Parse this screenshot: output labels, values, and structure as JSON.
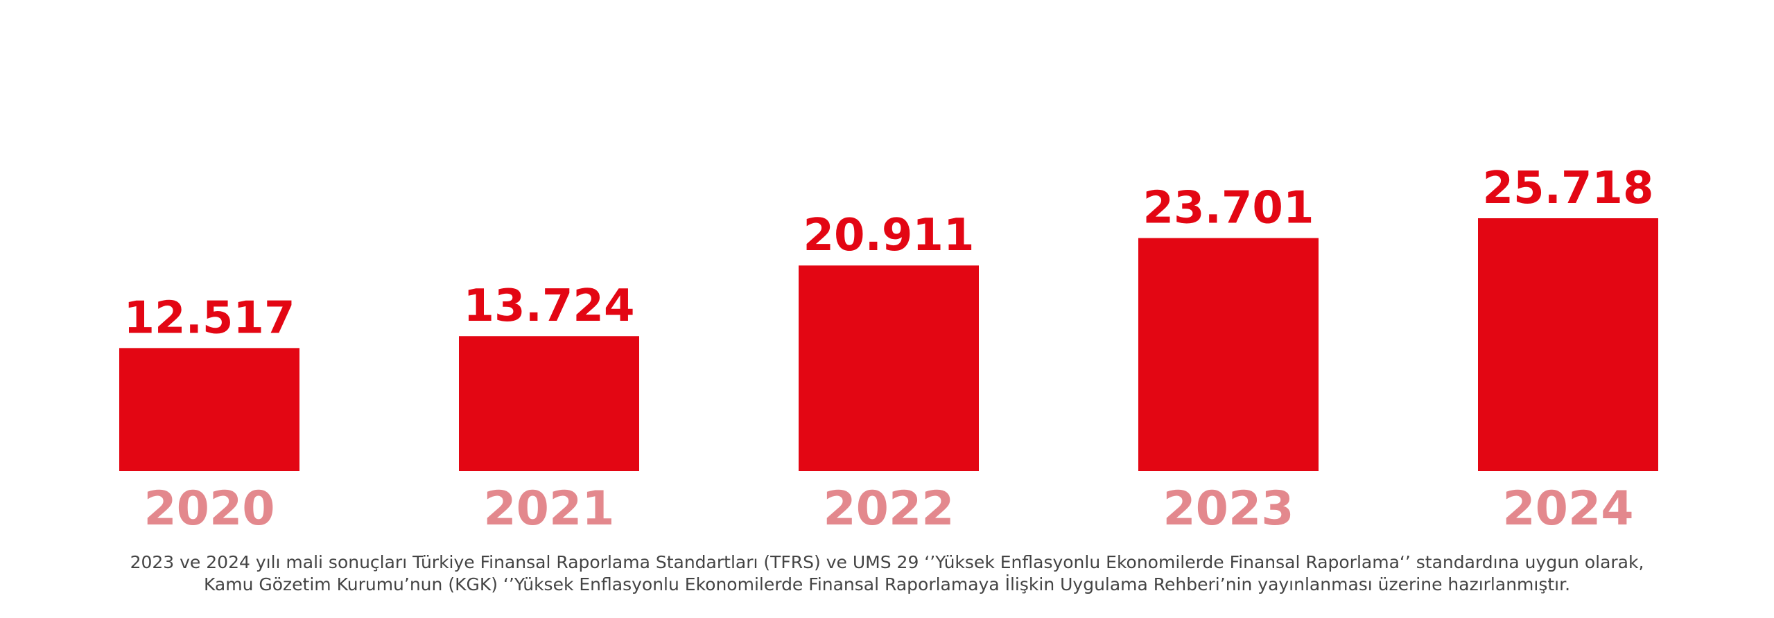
{
  "chart_data": {
    "type": "bar",
    "categories": [
      "2020",
      "2021",
      "2022",
      "2023",
      "2024"
    ],
    "values": [
      12517,
      13724,
      20911,
      23701,
      25718
    ],
    "value_labels": [
      "12.517",
      "13.724",
      "20.911",
      "23.701",
      "25.718"
    ],
    "title": "",
    "xlabel": "",
    "ylabel": "",
    "grid": false,
    "legend": "none"
  },
  "footnote": {
    "line1": "2023 ve 2024 yılı mali sonuçları Türkiye Finansal Raporlama Standartları (TFRS) ve UMS 29 ‘’Yüksek Enflasyonlu Ekonomilerde Finansal Raporlama‘’ standardına uygun olarak,",
    "line2": "Kamu Gözetim Kurumu’nun (KGK) ‘’Yüksek Enflasyonlu Ekonomilerde Finansal Raporlamaya İlişkin Uygulama Rehberi’nin yayınlanması üzerine hazırlanmıştır."
  },
  "colors": {
    "bar": "#e30613",
    "value_label": "#e30613",
    "category_label": "#e3888d",
    "footnote": "#444444"
  }
}
